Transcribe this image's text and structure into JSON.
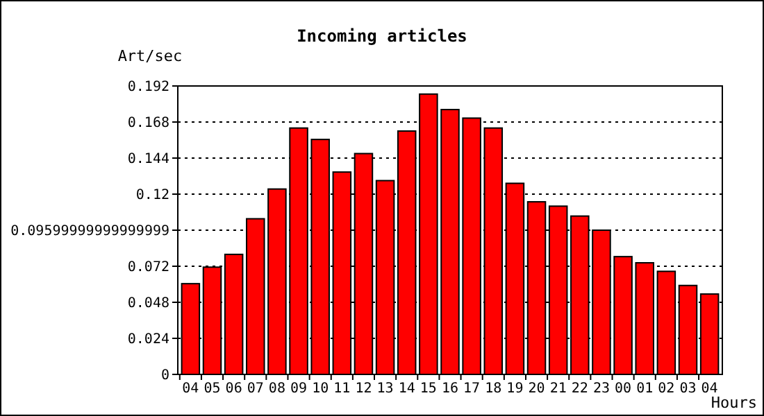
{
  "chart_data": {
    "type": "bar",
    "title": "Incoming articles",
    "ylabel": "Art/sec",
    "xlabel": "Hours",
    "categories": [
      "04",
      "05",
      "06",
      "07",
      "08",
      "09",
      "10",
      "11",
      "12",
      "13",
      "14",
      "15",
      "16",
      "17",
      "18",
      "19",
      "20",
      "21",
      "22",
      "23",
      "00",
      "01",
      "02",
      "03",
      "04"
    ],
    "values": [
      0.0604,
      0.0714,
      0.0799,
      0.1036,
      0.1234,
      0.164,
      0.1564,
      0.1347,
      0.147,
      0.129,
      0.162,
      0.1866,
      0.1763,
      0.1706,
      0.164,
      0.1272,
      0.1149,
      0.112,
      0.1054,
      0.096,
      0.0784,
      0.0743,
      0.0686,
      0.0592,
      0.0535
    ],
    "color": "#ff0000",
    "ylim": [
      0,
      0.192
    ],
    "yticks": [
      0,
      0.024,
      0.048,
      0.072,
      {
        "value": 0.096,
        "label": "0.09599999999999999"
      },
      0.12,
      0.144,
      0.168,
      0.192
    ],
    "grid": "y"
  }
}
